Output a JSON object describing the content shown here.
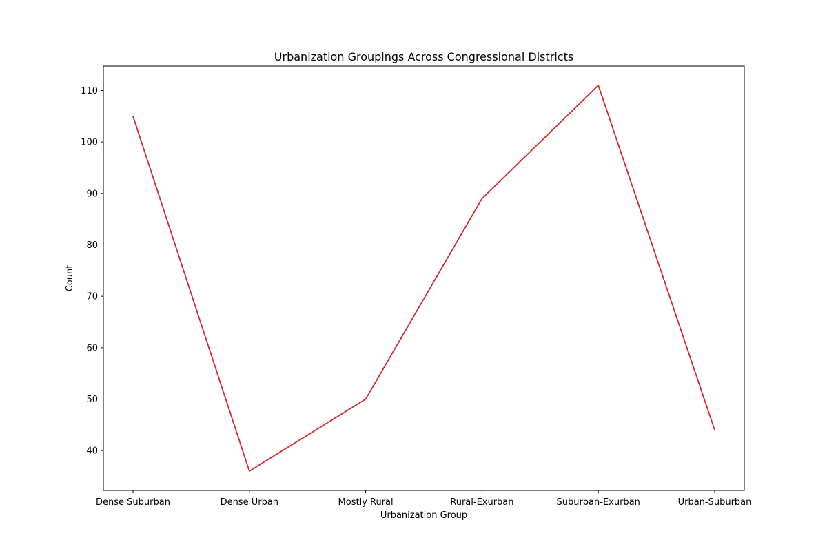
{
  "chart_data": {
    "type": "line",
    "title": "Urbanization Groupings Across Congressional Districts",
    "xlabel": "Urbanization Group",
    "ylabel": "Count",
    "categories": [
      "Dense Suburban",
      "Dense Urban",
      "Mostly Rural",
      "Rural-Exurban",
      "Suburban-Exurban",
      "Urban-Suburban"
    ],
    "series": [
      {
        "values": [
          105,
          36,
          50,
          89,
          111,
          44
        ],
        "color": "#d62728"
      }
    ],
    "yticks": [
      40,
      50,
      60,
      70,
      80,
      90,
      100,
      110
    ],
    "ylim": [
      32.25,
      114.75
    ],
    "grid": false,
    "legend": "none"
  }
}
